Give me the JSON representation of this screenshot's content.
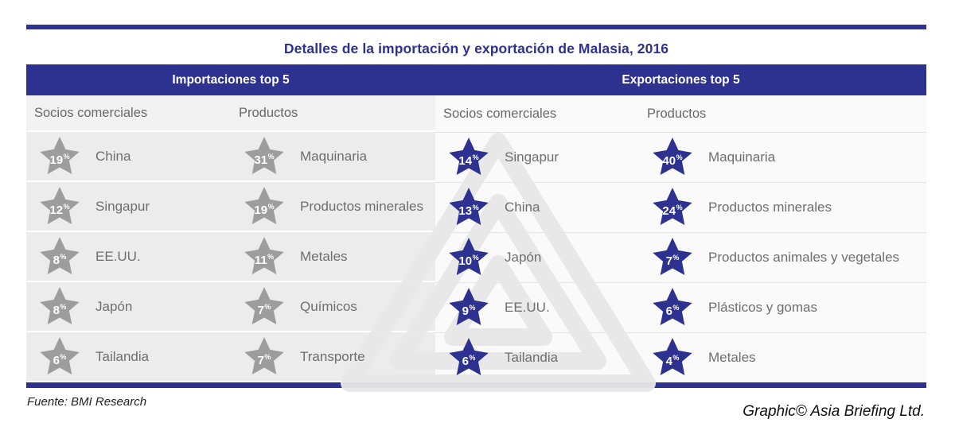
{
  "title": "Detalles de la importación y exportación de Malasia, 2016",
  "percent_sign": "%",
  "colors": {
    "navy": "#2d3190",
    "star_gray": "#9d9d9d",
    "star_navy": "#2d3190"
  },
  "sections": [
    {
      "header": "Importaciones top 5",
      "star_color": "#9d9d9d",
      "columns": [
        {
          "header": "Socios comerciales",
          "items": [
            {
              "value": 19,
              "label": "China"
            },
            {
              "value": 12,
              "label": "Singapur"
            },
            {
              "value": 8,
              "label": "EE.UU."
            },
            {
              "value": 8,
              "label": "Japón"
            },
            {
              "value": 6,
              "label": "Tailandia"
            }
          ]
        },
        {
          "header": "Productos",
          "items": [
            {
              "value": 31,
              "label": "Maquinaria"
            },
            {
              "value": 19,
              "label": "Productos minerales"
            },
            {
              "value": 11,
              "label": "Metales"
            },
            {
              "value": 7,
              "label": "Químicos"
            },
            {
              "value": 7,
              "label": "Transporte"
            }
          ]
        }
      ]
    },
    {
      "header": "Exportaciones top 5",
      "star_color": "#2d3190",
      "columns": [
        {
          "header": "Socios comerciales",
          "items": [
            {
              "value": 14,
              "label": "Singapur"
            },
            {
              "value": 13,
              "label": "China"
            },
            {
              "value": 10,
              "label": "Japón"
            },
            {
              "value": 9,
              "label": "EE.UU."
            },
            {
              "value": 6,
              "label": "Tailandia"
            }
          ]
        },
        {
          "header": "Productos",
          "items": [
            {
              "value": 40,
              "label": "Maquinaria"
            },
            {
              "value": 24,
              "label": "Productos minerales"
            },
            {
              "value": 7,
              "label": "Productos animales y vegetales"
            },
            {
              "value": 6,
              "label": "Plásticos y gomas"
            },
            {
              "value": 4,
              "label": "Metales"
            }
          ]
        }
      ]
    }
  ],
  "footer": {
    "source": "Fuente: BMI Research",
    "credit": "Graphic© Asia Briefing Ltd."
  },
  "chart_data": {
    "type": "table",
    "title": "Detalles de la importación y exportación de Malasia, 2016",
    "unit": "%",
    "tables": [
      {
        "section": "Importaciones top 5",
        "column": "Socios comerciales",
        "rows": [
          [
            "China",
            19
          ],
          [
            "Singapur",
            12
          ],
          [
            "EE.UU.",
            8
          ],
          [
            "Japón",
            8
          ],
          [
            "Tailandia",
            6
          ]
        ]
      },
      {
        "section": "Importaciones top 5",
        "column": "Productos",
        "rows": [
          [
            "Maquinaria",
            31
          ],
          [
            "Productos minerales",
            19
          ],
          [
            "Metales",
            11
          ],
          [
            "Químicos",
            7
          ],
          [
            "Transporte",
            7
          ]
        ]
      },
      {
        "section": "Exportaciones top 5",
        "column": "Socios comerciales",
        "rows": [
          [
            "Singapur",
            14
          ],
          [
            "China",
            13
          ],
          [
            "Japón",
            10
          ],
          [
            "EE.UU.",
            9
          ],
          [
            "Tailandia",
            6
          ]
        ]
      },
      {
        "section": "Exportaciones top 5",
        "column": "Productos",
        "rows": [
          [
            "Maquinaria",
            40
          ],
          [
            "Productos minerales",
            24
          ],
          [
            "Productos animales y vegetales",
            7
          ],
          [
            "Plásticos y gomas",
            6
          ],
          [
            "Metales",
            4
          ]
        ]
      }
    ]
  }
}
